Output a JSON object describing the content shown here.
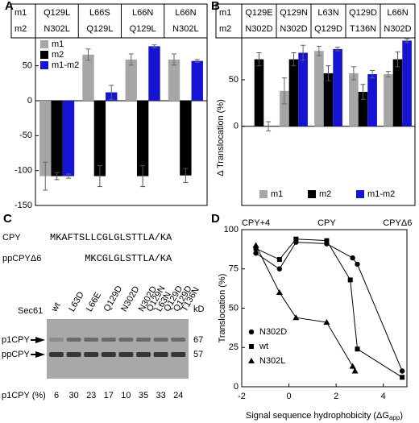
{
  "chart_data": [
    {
      "type": "bar",
      "panel": "A",
      "header_rows": [
        "m1",
        "m2"
      ],
      "categories": [
        [
          "Q129L",
          "N302L"
        ],
        [
          "L66S",
          "Q129L"
        ],
        [
          "L66N",
          "Q129L"
        ],
        [
          "L66N",
          "N302L"
        ]
      ],
      "series": [
        {
          "name": "m1",
          "color": "#a6a6a6",
          "values": [
            -108,
            66,
            59,
            59
          ],
          "errors": [
            20,
            8,
            8,
            8
          ]
        },
        {
          "name": "m2",
          "color": "#000000",
          "values": [
            -108,
            -108,
            -108,
            -107
          ],
          "errors": [
            5,
            15,
            15,
            10
          ]
        },
        {
          "name": "m1-m2",
          "color": "#1414d2",
          "values": [
            -108,
            12,
            78,
            57
          ],
          "errors": [
            3,
            10,
            2,
            2
          ]
        }
      ],
      "ylim": [
        -150,
        90
      ],
      "yticks": [
        -150,
        -100,
        -50,
        0,
        50
      ],
      "legend": "upper left"
    },
    {
      "type": "bar",
      "panel": "B",
      "header_rows": [
        "m1",
        "m2"
      ],
      "categories": [
        [
          "Q129E",
          "N302D"
        ],
        [
          "Q129N",
          "N302D"
        ],
        [
          "L63N",
          "Q129D"
        ],
        [
          "Q129D",
          "T136N"
        ],
        [
          "L66N",
          "N302D"
        ]
      ],
      "series": [
        {
          "name": "m1",
          "color": "#a6a6a6",
          "values": [
            0,
            38,
            81,
            57,
            56
          ],
          "errors": [
            0,
            14,
            5,
            7,
            3
          ]
        },
        {
          "name": "m2",
          "color": "#000000",
          "values": [
            72,
            72,
            57,
            37,
            72
          ],
          "errors": [
            7,
            7,
            8,
            8,
            8
          ]
        },
        {
          "name": "m1-m2",
          "color": "#1414d2",
          "values": [
            0,
            79,
            83,
            56,
            92
          ],
          "errors": [
            5,
            8,
            2,
            4,
            2
          ]
        }
      ],
      "ylabel": "Δ Translocation (%)",
      "ylim": [
        -85,
        95
      ],
      "yticks": [
        0,
        50
      ],
      "legend": "lower center"
    },
    {
      "type": "scatter",
      "panel": "D",
      "xlabel": {
        "text": "Signal sequence hydrophobicity (ΔG",
        "sub": "app",
        "end": ")"
      },
      "ylabel": "Translocation (%)",
      "annotations": [
        {
          "text": "CPY+4",
          "x": -1.4
        },
        {
          "text": "CPY",
          "x": 1.6
        },
        {
          "text": "CPYΔ6",
          "x": 4.6
        }
      ],
      "series": [
        {
          "name": "N302D",
          "color": "#000000",
          "marker": "circle",
          "x": [
            -1.4,
            -0.4,
            0.3,
            1.6,
            2.7,
            2.9,
            4.8
          ],
          "values": [
            85,
            75,
            92,
            91,
            82,
            78,
            10
          ]
        },
        {
          "name": "wt",
          "color": "#000000",
          "marker": "square",
          "x": [
            -1.4,
            -0.4,
            0.3,
            1.6,
            2.6,
            2.9,
            4.8
          ],
          "values": [
            88,
            81,
            94,
            93,
            68,
            24,
            6
          ]
        },
        {
          "name": "N302L",
          "color": "#000000",
          "marker": "triangle",
          "x": [
            -1.4,
            -0.4,
            0.3,
            1.6,
            2.7,
            2.8
          ],
          "values": [
            90,
            60,
            44,
            41,
            13,
            10
          ]
        }
      ],
      "xlim": [
        -2,
        5
      ],
      "xticks": [
        -2,
        0,
        2,
        4
      ],
      "ylim": [
        0,
        100
      ],
      "yticks": [
        0,
        25,
        50,
        75,
        100
      ],
      "legend": "lower left"
    }
  ],
  "panel_c": {
    "panel": "C",
    "sequences": [
      {
        "name": "CPY",
        "seq": "MKAFTSLLCGLGLSTTLA/KA"
      },
      {
        "name": "ppCPYΔ6",
        "seq": "MKCGLGLSTTLA/KA"
      }
    ],
    "lane_title": "Sec61",
    "lanes": [
      [
        "wt"
      ],
      [
        "L63D"
      ],
      [
        "L66E"
      ],
      [
        "Q129D"
      ],
      [
        "N302D"
      ],
      [
        "N302D",
        "Q129N"
      ],
      [
        "L63N",
        "Q129D"
      ],
      [
        "Q129D",
        "T136N"
      ]
    ],
    "unit": "kD",
    "markers": [
      "67",
      "57"
    ],
    "bands": [
      "p1CPY",
      "ppCPY"
    ],
    "row_title": "p1CPY (%)",
    "percent": [
      "6",
      "30",
      "23",
      "17",
      "10",
      "35",
      "33",
      "24"
    ]
  }
}
